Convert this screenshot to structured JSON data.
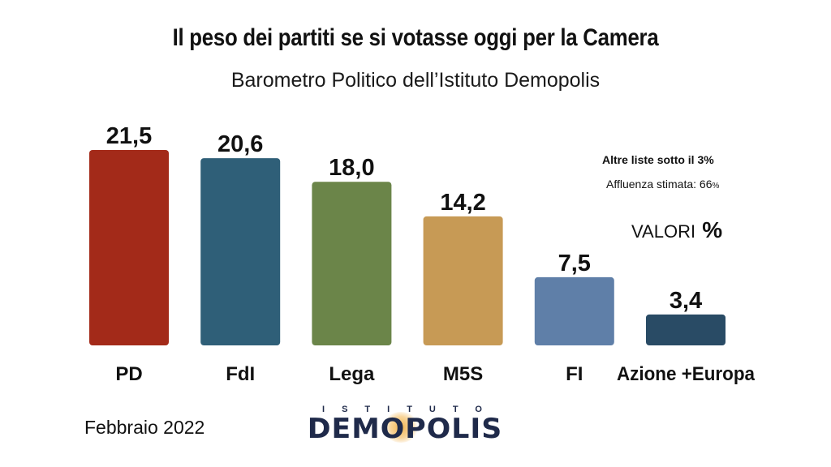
{
  "title": "Il peso dei partiti se si votasse oggi per la Camera",
  "subtitle": "Barometro Politico dell’Istituto Demopolis",
  "notes": {
    "line1": "Altre liste sotto il 3%",
    "line2_text": "Affluenza stimata: 66",
    "line2_unit": "%",
    "units_text": "VALORI",
    "units_symbol": "%"
  },
  "date": "Febbraio 2022",
  "logo": {
    "top_text": "ISTITUTO",
    "main_text": "DEMOPOLIS"
  },
  "chart_data": {
    "type": "bar",
    "categories": [
      "PD",
      "FdI",
      "Lega",
      "M5S",
      "FI",
      "Azione +Europa"
    ],
    "values": [
      21.5,
      20.6,
      18.0,
      14.2,
      7.5,
      3.4
    ],
    "value_labels": [
      "21,5",
      "20,6",
      "18,0",
      "14,2",
      "7,5",
      "3,4"
    ],
    "colors": [
      "#a32a19",
      "#2f5f78",
      "#6b8549",
      "#c79a55",
      "#5f7fa8",
      "#294b65"
    ],
    "title": "Il peso dei partiti se si votasse oggi per la Camera",
    "xlabel": "",
    "ylabel": "",
    "ylim": [
      0,
      21.5
    ],
    "grid": false,
    "legend": "none"
  }
}
